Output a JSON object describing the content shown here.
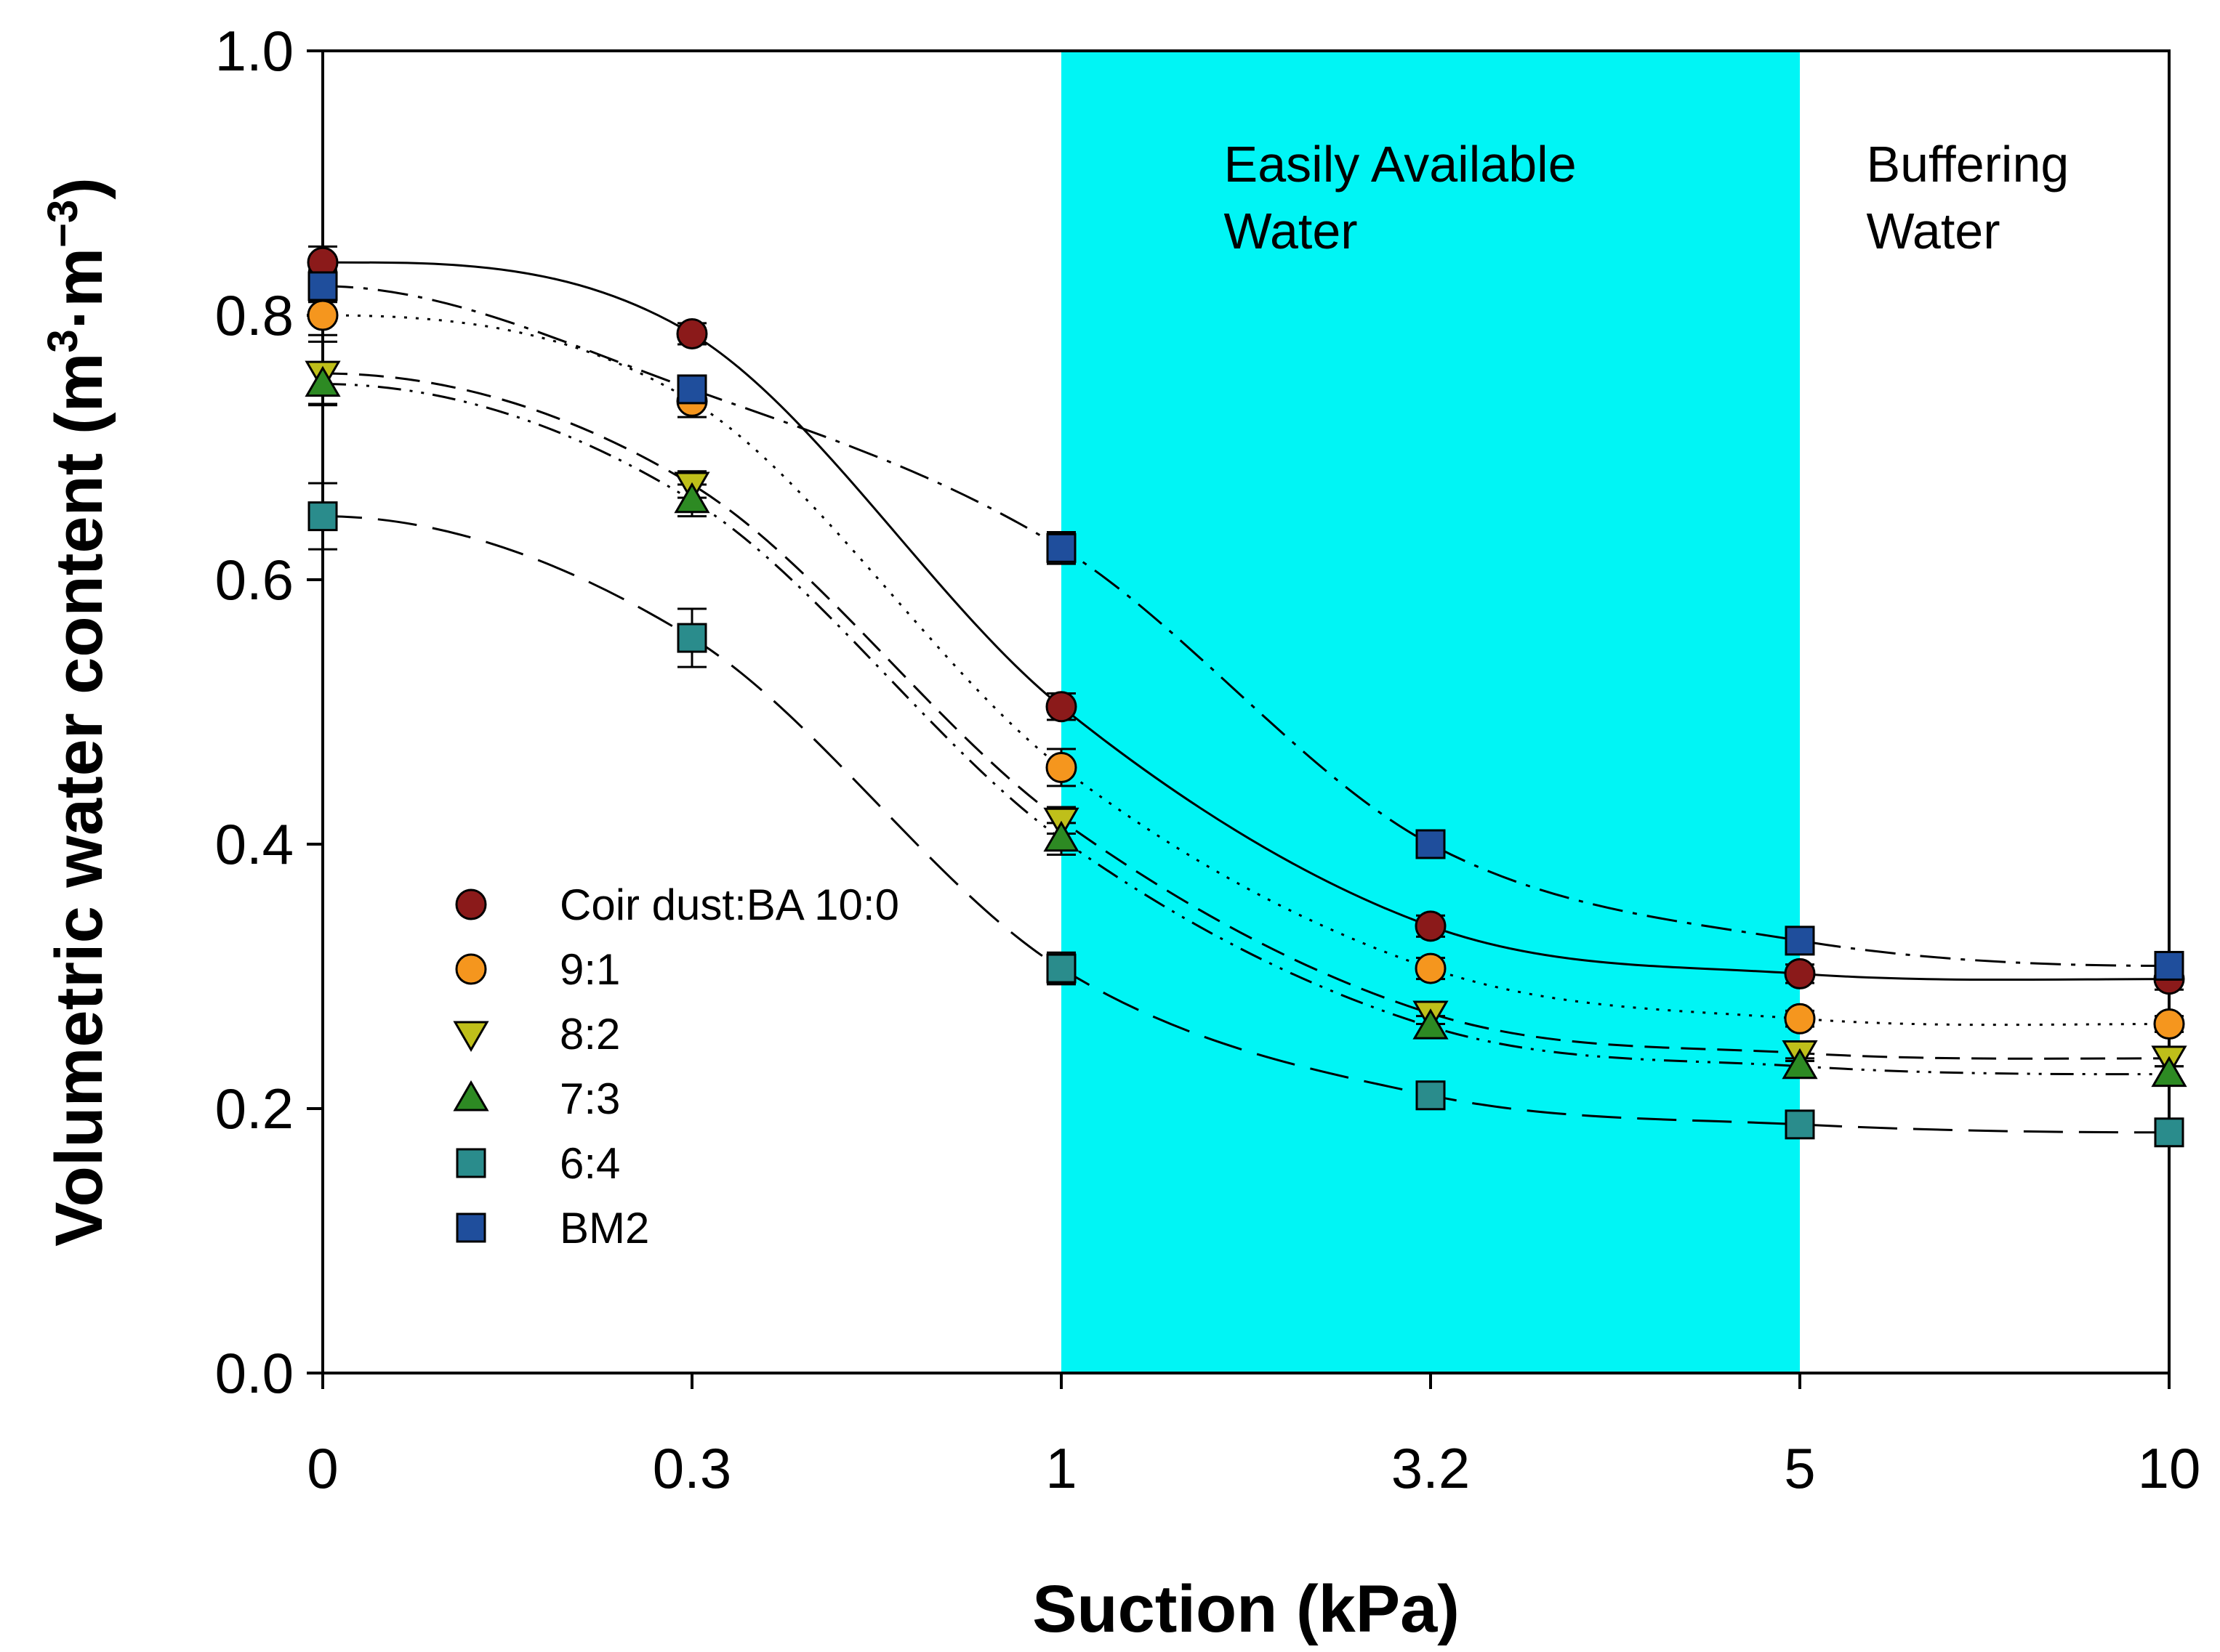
{
  "chart_data": {
    "type": "line",
    "title": "",
    "xlabel": "Suction (kPa)",
    "ylabel_main": "Volumetric water content (m",
    "ylabel_sup1": "3",
    "ylabel_dot": "·",
    "ylabel_m": "m",
    "ylabel_sup2": "−3",
    "ylabel_close": ")",
    "categories": [
      "0",
      "0.3",
      "1",
      "3.2",
      "5",
      "10"
    ],
    "ylim": [
      0.0,
      1.0
    ],
    "yticks": [
      "0.0",
      "0.2",
      "0.4",
      "0.6",
      "0.8",
      "1.0"
    ],
    "grid": false,
    "legend_position": "lower-left",
    "regions": [
      {
        "label_line1": "Easily Available",
        "label_line2": "Water",
        "from_category": "1",
        "to_category": "5",
        "color": "#00F5F5",
        "shaded": true
      },
      {
        "label_line1": "Buffering",
        "label_line2": "Water",
        "from_category": "5",
        "to_category": "10",
        "color": "#ffffff",
        "shaded": false
      }
    ],
    "series": [
      {
        "name": "Coir dust:BA 10:0",
        "marker": "circle",
        "color": "#8B1A1A",
        "line_style": "solid",
        "values": [
          0.84,
          0.786,
          0.504,
          0.338,
          0.302,
          0.298
        ],
        "errors": [
          0.012,
          0.008,
          0.01,
          0.008,
          0.007,
          0.008
        ]
      },
      {
        "name": "9:1",
        "marker": "circle",
        "color": "#F5961E",
        "line_style": "dotted",
        "values": [
          0.8,
          0.735,
          0.458,
          0.306,
          0.268,
          0.264
        ],
        "errors": [
          0.015,
          0.012,
          0.014,
          0.008,
          0.006,
          0.006
        ]
      },
      {
        "name": "8:2",
        "marker": "triangle-down",
        "color": "#BFBF1A",
        "line_style": "dashed",
        "values": [
          0.756,
          0.672,
          0.418,
          0.272,
          0.242,
          0.238
        ],
        "errors": [
          0.024,
          0.01,
          0.01,
          0.008,
          0.006,
          0.006
        ]
      },
      {
        "name": "7:3",
        "marker": "triangle-up",
        "color": "#2D8A23",
        "line_style": "dash-dot-dot",
        "values": [
          0.748,
          0.66,
          0.404,
          0.262,
          0.232,
          0.226
        ],
        "errors": [
          0.015,
          0.012,
          0.012,
          0.008,
          0.006,
          0.006
        ]
      },
      {
        "name": "6:4",
        "marker": "square",
        "color": "#2A8C8C",
        "line_style": "long-dash",
        "values": [
          0.648,
          0.556,
          0.306,
          0.21,
          0.188,
          0.182
        ],
        "errors": [
          0.025,
          0.022,
          0.012,
          0.006,
          0.006,
          0.006
        ]
      },
      {
        "name": "BM2",
        "marker": "square",
        "color": "#1F4E9C",
        "line_style": "dash-dot",
        "values": [
          0.822,
          0.744,
          0.624,
          0.4,
          0.327,
          0.308
        ],
        "errors": [
          0.012,
          0.008,
          0.012,
          0.006,
          0.006,
          0.006
        ]
      }
    ]
  }
}
